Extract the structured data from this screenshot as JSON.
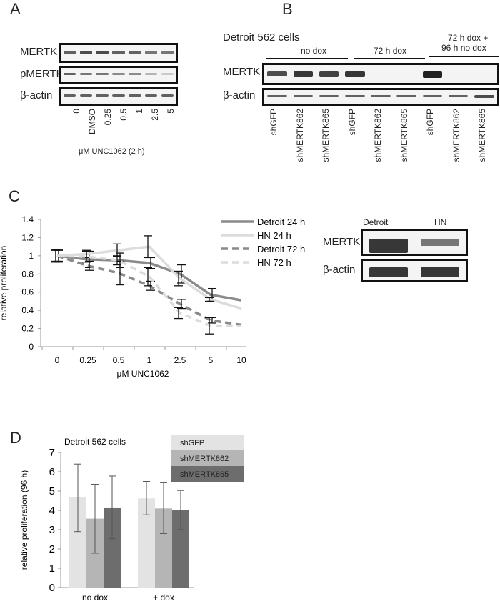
{
  "panels": {
    "a": "A",
    "b": "B",
    "c": "C",
    "d": "D"
  },
  "panel_a": {
    "rows": [
      "MERTK",
      "pMERTK",
      "β-actin"
    ],
    "lanes": [
      "0",
      "DMSO",
      "0.25",
      "0.5",
      "1",
      "2.5",
      "5"
    ],
    "xlabel": "μM UNC1062 (2 h)"
  },
  "panel_b": {
    "title": "Detroit 562 cells",
    "groups": [
      "no dox",
      "72 h dox",
      "72 h dox +",
      "96 h no dox"
    ],
    "rows": [
      "MERTK",
      "β-actin"
    ],
    "lanes": [
      "shGFP",
      "shMERTK862",
      "shMERTK865",
      "shGFP",
      "shMERTK862",
      "shMERTK865",
      "shGFP",
      "shMERTK862",
      "shMERTK865"
    ]
  },
  "panel_c_blot": {
    "lanes": [
      "Detroit",
      "HN"
    ],
    "rows": [
      "MERTK",
      "β-actin"
    ]
  },
  "chart_data": [
    {
      "type": "line",
      "xlabel": "μM UNC1062",
      "ylabel": "relative proliferation",
      "categories": [
        "0",
        "0.25",
        "0.5",
        "1",
        "2.5",
        "5",
        "10"
      ],
      "ylim": [
        0,
        1.4
      ],
      "yticks": [
        "0",
        "0.2",
        "0.4",
        "0.6",
        "0.8",
        "1",
        "1.2",
        "1.4"
      ],
      "legend_position": "top-right",
      "series": [
        {
          "name": "Detroit 24 h",
          "color": "#8a8a8a",
          "dashed": false,
          "values": [
            1,
            0.96,
            0.95,
            0.92,
            0.8,
            0.57,
            0.51
          ],
          "err": [
            0.07,
            0.09,
            0.08,
            0.06,
            0.1,
            0.07,
            0
          ]
        },
        {
          "name": "HN 24 h",
          "color": "#dcdcdc",
          "dashed": false,
          "values": [
            1,
            1.02,
            1.06,
            1.1,
            0.75,
            0.52,
            0.42
          ],
          "err": [
            0.07,
            0.04,
            0.07,
            0.12,
            0.08,
            0.02,
            0
          ]
        },
        {
          "name": "Detroit 72 h",
          "color": "#8a8a8a",
          "dashed": true,
          "values": [
            1,
            0.89,
            0.81,
            0.67,
            0.47,
            0.29,
            0.24
          ],
          "err": [
            0.06,
            0.05,
            0.13,
            0.05,
            0.05,
            0.03,
            0
          ]
        },
        {
          "name": "HN 72 h",
          "color": "#dcdcdc",
          "dashed": true,
          "values": [
            1,
            0.99,
            0.95,
            0.77,
            0.37,
            0.23,
            0.23
          ],
          "err": [
            0.06,
            0.06,
            0.05,
            0.1,
            0.06,
            0.09,
            0
          ]
        }
      ]
    },
    {
      "type": "bar",
      "title": "Detroit 562 cells",
      "ylabel": "relative proliferation (96 h)",
      "categories": [
        "no dox",
        "+ dox"
      ],
      "ylim": [
        0,
        7
      ],
      "yticks": [
        "0",
        "1",
        "2",
        "3",
        "4",
        "5",
        "6",
        "7"
      ],
      "legend_position": "top-right",
      "series": [
        {
          "name": "shGFP",
          "color": "#e3e3e3",
          "values": [
            4.67,
            4.62
          ],
          "err_low": [
            2.9,
            3.77
          ],
          "err_high": [
            6.4,
            5.5
          ]
        },
        {
          "name": "shMERTK862",
          "color": "#b5b5b5",
          "values": [
            3.57,
            4.1
          ],
          "err_low": [
            1.78,
            2.8
          ],
          "err_high": [
            5.35,
            5.43
          ]
        },
        {
          "name": "shMERTK865",
          "color": "#6d6d6d",
          "values": [
            4.15,
            4.02
          ],
          "err_low": [
            2.53,
            3.0
          ],
          "err_high": [
            5.78,
            5.03
          ]
        }
      ]
    }
  ]
}
